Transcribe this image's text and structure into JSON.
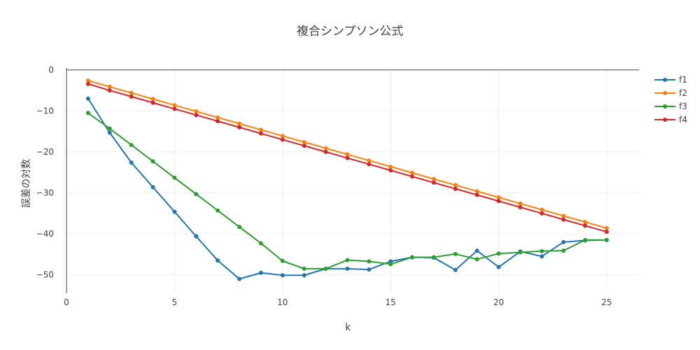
{
  "chart_data": {
    "type": "line",
    "title": "複合シンプソン公式",
    "xlabel": "k",
    "ylabel": "誤差の対数",
    "xlim": [
      0,
      26.5
    ],
    "ylim": [
      -54.5,
      0.5
    ],
    "xticks": [
      0,
      5,
      10,
      15,
      20,
      25
    ],
    "yticks": [
      0,
      -10,
      -20,
      -30,
      -40,
      -50
    ],
    "grid": true,
    "legend_position": "top-right",
    "x": [
      1,
      2,
      3,
      4,
      5,
      6,
      7,
      8,
      9,
      10,
      11,
      12,
      13,
      14,
      15,
      16,
      17,
      18,
      19,
      20,
      21,
      22,
      23,
      24,
      25
    ],
    "series": [
      {
        "name": "f1",
        "color": "#1f77b4",
        "values": [
          -7.0,
          -15.3,
          -22.6,
          -28.6,
          -34.6,
          -40.6,
          -46.5,
          -51.0,
          -49.5,
          -50.1,
          -50.1,
          -48.5,
          -48.5,
          -48.7,
          -46.7,
          -45.7,
          -45.8,
          -48.8,
          -44.1,
          -48.1,
          -44.3,
          -45.5,
          -42.0,
          -41.6,
          -41.5
        ]
      },
      {
        "name": "f2",
        "color": "#ff7f0e",
        "values": [
          -2.6,
          -4.1,
          -5.6,
          -7.1,
          -8.6,
          -10.1,
          -11.6,
          -13.1,
          -14.6,
          -16.1,
          -17.6,
          -19.1,
          -20.6,
          -22.1,
          -23.6,
          -25.1,
          -26.6,
          -28.1,
          -29.6,
          -31.1,
          -32.6,
          -34.1,
          -35.6,
          -37.1,
          -38.6
        ]
      },
      {
        "name": "f3",
        "color": "#2ca02c",
        "values": [
          -10.5,
          -14.3,
          -18.3,
          -22.3,
          -26.3,
          -30.3,
          -34.3,
          -38.3,
          -42.3,
          -46.6,
          -48.5,
          -48.5,
          -46.4,
          -46.7,
          -47.4,
          -45.7,
          -45.7,
          -44.9,
          -46.2,
          -44.8,
          -44.5,
          -44.2,
          -44.1,
          -41.5,
          -41.5
        ]
      },
      {
        "name": "f4",
        "color": "#d62728",
        "values": [
          -3.4,
          -5.0,
          -6.5,
          -8.0,
          -9.5,
          -11.0,
          -12.5,
          -14.0,
          -15.5,
          -17.0,
          -18.5,
          -20.0,
          -21.5,
          -23.0,
          -24.5,
          -26.0,
          -27.5,
          -29.0,
          -30.5,
          -32.0,
          -33.5,
          -35.0,
          -36.5,
          -38.0,
          -39.5
        ]
      }
    ]
  }
}
